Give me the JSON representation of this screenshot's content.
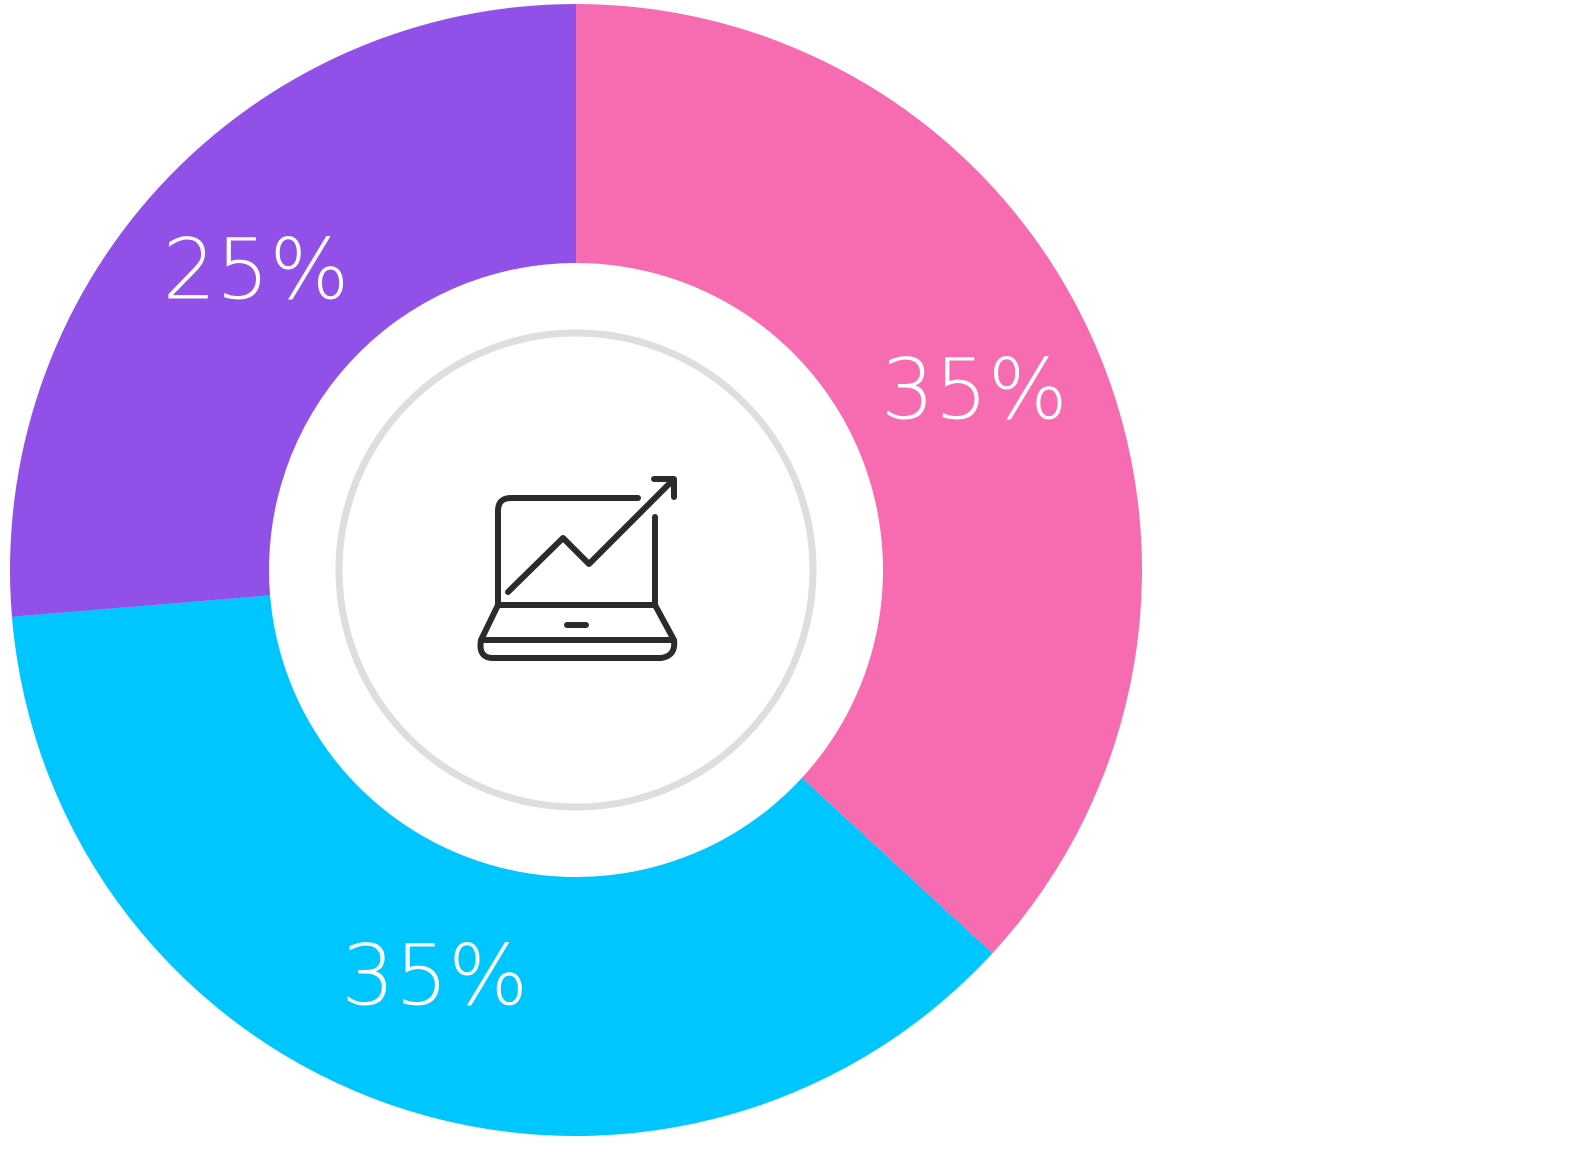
{
  "chart_data": {
    "type": "donut",
    "values": [
      35,
      35,
      25
    ],
    "value_labels": [
      "35%",
      "35%",
      "25%"
    ],
    "colors": [
      "#f76bb0",
      "#00c6ff",
      "#9150e8"
    ]
  }
}
